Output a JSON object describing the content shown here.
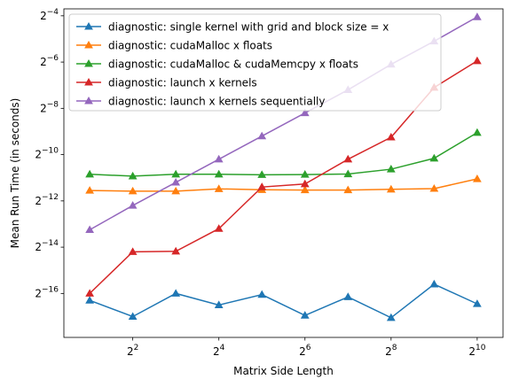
{
  "chart_data": {
    "type": "line",
    "xlabel": "Matrix Side Length",
    "ylabel": "Mean Run Time (in seconds)",
    "xscale": "log2",
    "yscale": "log2",
    "xlim_log2": [
      0.4,
      10.6
    ],
    "ylim_log2": [
      -17.9,
      -3.7
    ],
    "x_ticks": [
      {
        "exp": 2,
        "base": "2",
        "sup": "2"
      },
      {
        "exp": 4,
        "base": "2",
        "sup": "4"
      },
      {
        "exp": 6,
        "base": "2",
        "sup": "6"
      },
      {
        "exp": 8,
        "base": "2",
        "sup": "8"
      },
      {
        "exp": 10,
        "base": "2",
        "sup": "10"
      }
    ],
    "y_ticks": [
      {
        "exp": -16,
        "base": "2",
        "sup": "−16"
      },
      {
        "exp": -14,
        "base": "2",
        "sup": "−14"
      },
      {
        "exp": -12,
        "base": "2",
        "sup": "−12"
      },
      {
        "exp": -10,
        "base": "2",
        "sup": "−10"
      },
      {
        "exp": -8,
        "base": "2",
        "sup": "−8"
      },
      {
        "exp": -6,
        "base": "2",
        "sup": "−6"
      },
      {
        "exp": -4,
        "base": "2",
        "sup": "−4"
      }
    ],
    "x_log2": [
      1,
      2,
      3,
      4,
      5,
      6,
      7,
      8,
      9,
      10
    ],
    "legend_position": "top-left",
    "grid": false,
    "marker": "triangle-up",
    "series": [
      {
        "name": "diagnostic: single kernel with grid and block size = x",
        "color": "#1f77b4",
        "y_log2": [
          -16.3,
          -17.0,
          -16.0,
          -16.5,
          -16.05,
          -16.95,
          -16.15,
          -17.05,
          -15.6,
          -16.45
        ]
      },
      {
        "name": "diagnostic: cudaMalloc x floats",
        "color": "#ff7f0e",
        "y_log2": [
          -11.55,
          -11.58,
          -11.58,
          -11.48,
          -11.52,
          -11.53,
          -11.53,
          -11.5,
          -11.47,
          -11.05
        ]
      },
      {
        "name": "diagnostic: cudaMalloc & cudaMemcpy x floats",
        "color": "#2ca02c",
        "y_log2": [
          -10.85,
          -10.93,
          -10.85,
          -10.85,
          -10.87,
          -10.86,
          -10.84,
          -10.63,
          -10.16,
          -9.05
        ]
      },
      {
        "name": "diagnostic: launch x kernels",
        "color": "#d62728",
        "y_log2": [
          -16.0,
          -14.2,
          -14.18,
          -13.2,
          -11.4,
          -11.27,
          -10.2,
          -9.25,
          -7.1,
          -5.95
        ]
      },
      {
        "name": "diagnostic: launch x kernels sequentially",
        "color": "#9467bd",
        "y_log2": [
          -13.25,
          -12.2,
          -11.2,
          -10.2,
          -9.2,
          -8.2,
          -7.2,
          -6.1,
          -5.1,
          -4.05
        ]
      }
    ]
  }
}
